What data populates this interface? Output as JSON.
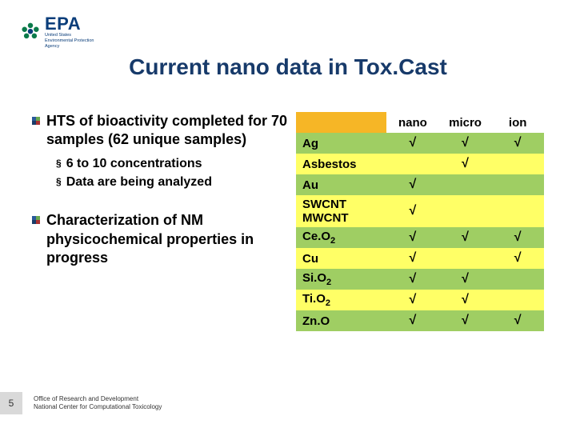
{
  "logo": {
    "acronym": "EPA",
    "sub1": "United States",
    "sub2": "Environmental Protection",
    "sub3": "Agency",
    "icon_color": "#0a7a4a",
    "text_color": "#0a3d7a"
  },
  "title": "Current nano data in Tox.Cast",
  "title_color": "#173a6a",
  "bullets": {
    "square_colors": [
      "#2a5a9a",
      "#6aa84f",
      "#1a3d6a",
      "#a83232"
    ],
    "b1": "HTS of bioactivity completed for 70 samples (62 unique samples)",
    "b1_sub1": "6 to 10 concentrations",
    "b1_sub2": "Data are being analyzed",
    "b2": "Characterization of NM physicochemical properties in progress"
  },
  "table": {
    "header_bg": "#f6b626",
    "row_green": "#9fce63",
    "row_yellow": "#ffff66",
    "check": "√",
    "columns": [
      "",
      "nano",
      "micro",
      "ion"
    ],
    "rows": [
      {
        "material": "Ag",
        "cells": [
          "√",
          "√",
          "√"
        ],
        "bg": "green"
      },
      {
        "material": "Asbestos",
        "cells": [
          "",
          "√",
          ""
        ],
        "bg": "yellow"
      },
      {
        "material": "Au",
        "cells": [
          "√",
          "",
          ""
        ],
        "bg": "green"
      },
      {
        "material": "SWCNT MWCNT",
        "cells": [
          "√",
          "",
          ""
        ],
        "bg": "yellow"
      },
      {
        "material_html": "Ce.O<sub>2</sub>",
        "material": "Ce.O2",
        "cells": [
          "√",
          "√",
          "√"
        ],
        "bg": "green"
      },
      {
        "material": "Cu",
        "cells": [
          "√",
          "",
          "√"
        ],
        "bg": "yellow"
      },
      {
        "material_html": "Si.O<sub>2</sub>",
        "material": "Si.O2",
        "cells": [
          "√",
          "√",
          ""
        ],
        "bg": "green"
      },
      {
        "material_html": "Ti.O<sub>2</sub>",
        "material": "Ti.O2",
        "cells": [
          "√",
          "√",
          ""
        ],
        "bg": "yellow"
      },
      {
        "material": "Zn.O",
        "cells": [
          "√",
          "√",
          "√"
        ],
        "bg": "green"
      }
    ]
  },
  "footer": {
    "page": "5",
    "line1": "Office of Research and Development",
    "line2": "National Center for Computational Toxicology"
  }
}
